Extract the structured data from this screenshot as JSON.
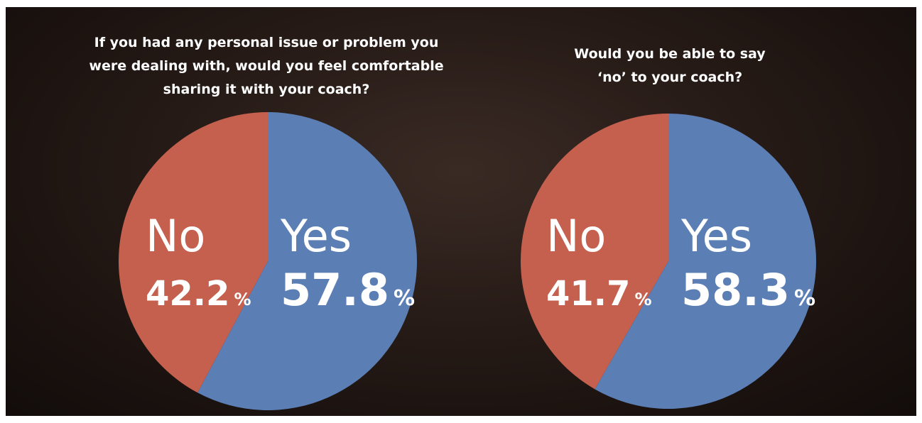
{
  "chart_data": [
    {
      "type": "pie",
      "title": "If you had any personal issue or problem you were dealing with, would you feel comfortable sharing it with your coach?",
      "categories": [
        "Yes",
        "No"
      ],
      "values": [
        57.8,
        42.2
      ],
      "colors": [
        "#5b7fb5",
        "#c5604f"
      ],
      "unit": "%"
    },
    {
      "type": "pie",
      "title": "Would you be able to say ‘no’ to your coach?",
      "categories": [
        "Yes",
        "No"
      ],
      "values": [
        58.3,
        41.7
      ],
      "colors": [
        "#5b7fb5",
        "#c5604f"
      ],
      "unit": "%"
    }
  ]
}
